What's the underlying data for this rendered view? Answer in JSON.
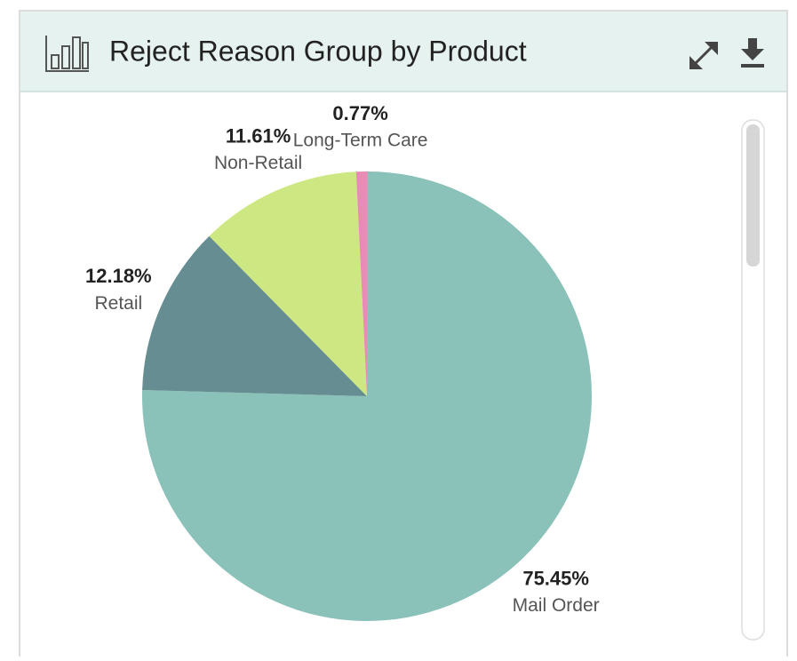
{
  "chart_data": {
    "type": "pie",
    "title": "Reject Reason Group by Product",
    "categories": [
      "Mail Order",
      "Retail",
      "Non-Retail",
      "Long-Term Care"
    ],
    "values": [
      75.45,
      12.18,
      11.61,
      0.77
    ],
    "value_labels": [
      "75.45%",
      "12.18%",
      "11.61%",
      "0.77%"
    ],
    "colors": [
      "#8ac1b8",
      "#668d91",
      "#cde882",
      "#e98bb7"
    ]
  }
}
